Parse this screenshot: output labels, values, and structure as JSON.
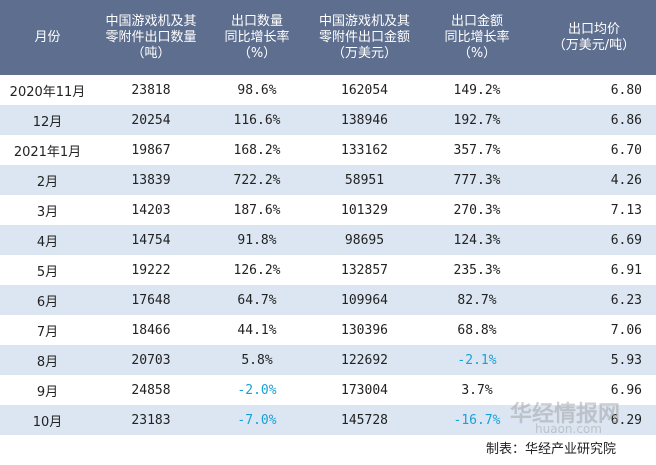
{
  "table": {
    "header": [
      "月份",
      "中国游戏机及其\n零附件出口数量\n（吨）",
      "出口数量\n同比增长率\n（%）",
      "中国游戏机及其\n零附件出口金额\n（万美元）",
      "出口金额\n同比增长率\n（%）",
      "出口均价\n（万美元/吨）"
    ],
    "rows": [
      [
        "2020年11月",
        "23818",
        "98.6%",
        "162054",
        "149.2%",
        "6.80"
      ],
      [
        "12月",
        "20254",
        "116.6%",
        "138946",
        "192.7%",
        "6.86"
      ],
      [
        "2021年1月",
        "19867",
        "168.2%",
        "133162",
        "357.7%",
        "6.70"
      ],
      [
        "2月",
        "13839",
        "722.2%",
        "58951",
        "777.3%",
        "4.26"
      ],
      [
        "3月",
        "14203",
        "187.6%",
        "101329",
        "270.3%",
        "7.13"
      ],
      [
        "4月",
        "14754",
        "91.8%",
        "98695",
        "124.3%",
        "6.69"
      ],
      [
        "5月",
        "19222",
        "126.2%",
        "132857",
        "235.3%",
        "6.91"
      ],
      [
        "6月",
        "17648",
        "64.7%",
        "109964",
        "82.7%",
        "6.23"
      ],
      [
        "7月",
        "18466",
        "44.1%",
        "130396",
        "68.8%",
        "7.06"
      ],
      [
        "8月",
        "20703",
        "5.8%",
        "122692",
        "-2.1%",
        "5.93"
      ],
      [
        "9月",
        "24858",
        "-2.0%",
        "173004",
        "3.7%",
        "6.96"
      ],
      [
        "10月",
        "23183",
        "-7.0%",
        "145728",
        "-16.7%",
        "6.29"
      ]
    ]
  },
  "footer": "制表：华经产业研究院",
  "watermark": {
    "name": "华经情报网",
    "url": "huaon.com"
  }
}
